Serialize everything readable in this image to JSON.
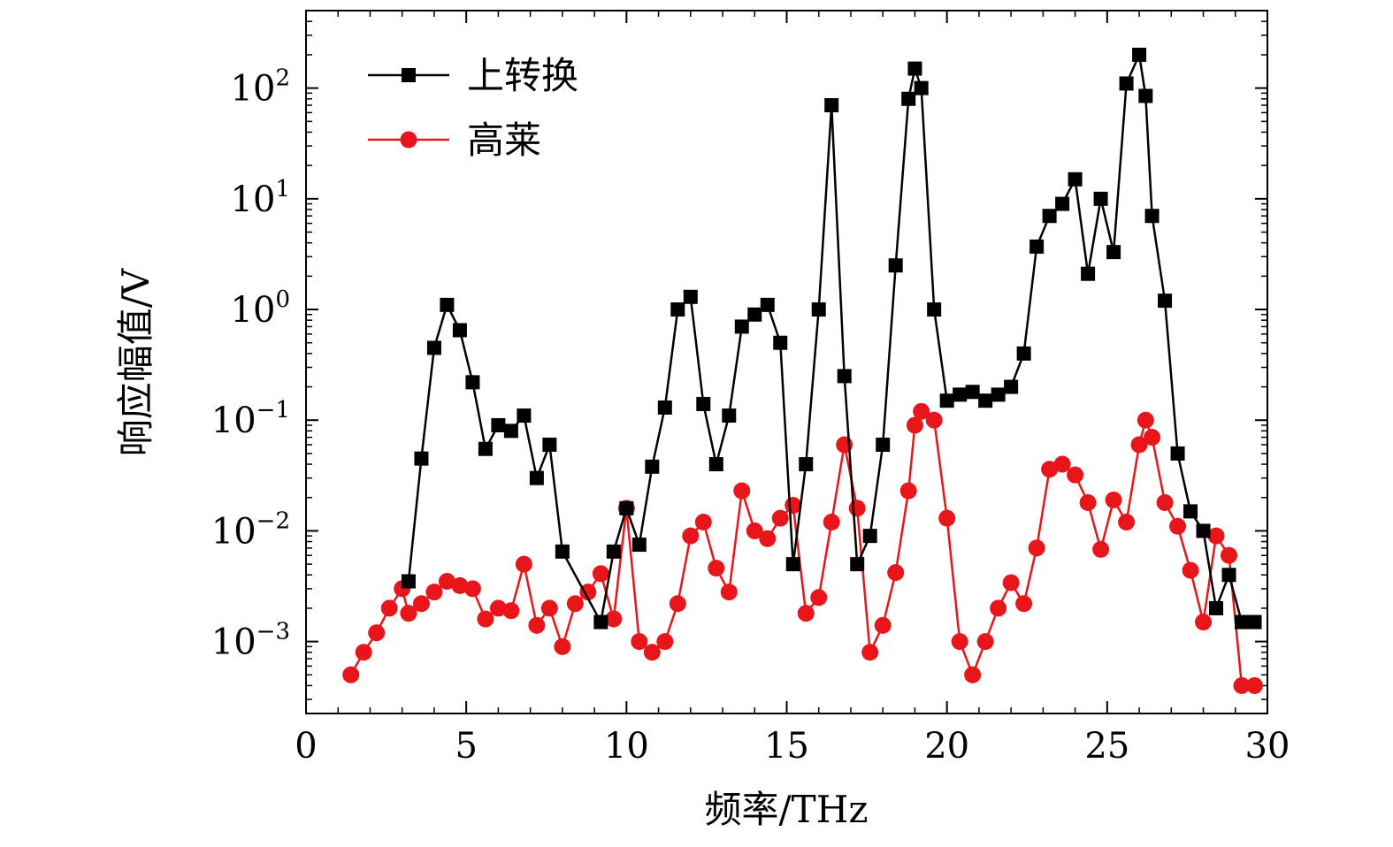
{
  "chart_data": {
    "type": "line",
    "title": "",
    "xlabel": "频率/THz",
    "ylabel": "响应幅值/V",
    "xlim": [
      0,
      30
    ],
    "ylim_log10": [
      -3.65,
      2.7
    ],
    "yscale": "log",
    "x_ticks": [
      "0",
      "5",
      "10",
      "15",
      "20",
      "25",
      "30"
    ],
    "y_ticks": [
      {
        "base": "10",
        "exp": "−3",
        "value": 0.001
      },
      {
        "base": "10",
        "exp": "−2",
        "value": 0.01
      },
      {
        "base": "10",
        "exp": "−1",
        "value": 0.1
      },
      {
        "base": "10",
        "exp": "0",
        "value": 1
      },
      {
        "base": "10",
        "exp": "1",
        "value": 10
      },
      {
        "base": "10",
        "exp": "2",
        "value": 100
      }
    ],
    "legend_position": "top-left",
    "series": [
      {
        "name": "上转换",
        "color": "#000000",
        "marker": "square",
        "x": [
          3.2,
          3.6,
          4.0,
          4.4,
          4.8,
          5.2,
          5.6,
          6.0,
          6.4,
          6.8,
          7.2,
          7.6,
          8.0,
          9.2,
          9.6,
          10.0,
          10.4,
          10.8,
          11.2,
          11.6,
          12.0,
          12.4,
          12.8,
          13.2,
          13.6,
          14.0,
          14.4,
          14.8,
          15.2,
          15.6,
          16.0,
          16.4,
          16.8,
          17.2,
          17.6,
          18.0,
          18.4,
          18.8,
          19.0,
          19.2,
          19.6,
          20.0,
          20.4,
          20.8,
          21.2,
          21.6,
          22.0,
          22.4,
          22.8,
          23.2,
          23.6,
          24.0,
          24.4,
          24.8,
          25.2,
          25.6,
          26.0,
          26.2,
          26.4,
          26.8,
          27.2,
          27.6,
          28.0,
          28.4,
          28.8,
          29.2,
          29.6
        ],
        "values": [
          0.0035,
          0.045,
          0.45,
          1.1,
          0.65,
          0.22,
          0.055,
          0.09,
          0.08,
          0.11,
          0.03,
          0.06,
          0.0065,
          0.0015,
          0.0065,
          0.016,
          0.0075,
          0.038,
          0.13,
          1.0,
          1.3,
          0.14,
          0.04,
          0.11,
          0.7,
          0.9,
          1.1,
          0.5,
          0.005,
          0.04,
          1.0,
          70,
          0.25,
          0.005,
          0.009,
          0.06,
          2.5,
          80,
          150,
          100,
          1.0,
          0.15,
          0.17,
          0.18,
          0.15,
          0.17,
          0.2,
          0.4,
          3.7,
          7.0,
          9.0,
          15,
          2.1,
          10,
          3.3,
          110,
          200,
          85,
          7.0,
          1.2,
          0.05,
          0.015,
          0.01,
          0.002,
          0.004,
          0.0015,
          0.0015
        ]
      },
      {
        "name": "高莱",
        "color": "#e8151b",
        "marker": "circle",
        "x": [
          1.4,
          1.8,
          2.2,
          2.6,
          3.0,
          3.2,
          3.6,
          4.0,
          4.4,
          4.8,
          5.2,
          5.6,
          6.0,
          6.4,
          6.8,
          7.2,
          7.6,
          8.0,
          8.4,
          8.8,
          9.2,
          9.6,
          10.0,
          10.4,
          10.8,
          11.2,
          11.6,
          12.0,
          12.4,
          12.8,
          13.2,
          13.6,
          14.0,
          14.4,
          14.8,
          15.2,
          15.6,
          16.0,
          16.4,
          16.8,
          17.2,
          17.6,
          18.0,
          18.4,
          18.8,
          19.0,
          19.2,
          19.6,
          20.0,
          20.4,
          20.8,
          21.2,
          21.6,
          22.0,
          22.4,
          22.8,
          23.2,
          23.6,
          24.0,
          24.4,
          24.8,
          25.2,
          25.6,
          26.0,
          26.2,
          26.4,
          26.8,
          27.2,
          27.6,
          28.0,
          28.4,
          28.8,
          29.2,
          29.6
        ],
        "values": [
          0.0005,
          0.0008,
          0.0012,
          0.002,
          0.003,
          0.0018,
          0.0022,
          0.0028,
          0.0035,
          0.0032,
          0.003,
          0.0016,
          0.002,
          0.0019,
          0.005,
          0.0014,
          0.002,
          0.0009,
          0.0022,
          0.0028,
          0.0041,
          0.0016,
          0.016,
          0.001,
          0.0008,
          0.001,
          0.0022,
          0.009,
          0.012,
          0.0046,
          0.0028,
          0.023,
          0.01,
          0.0085,
          0.013,
          0.017,
          0.0018,
          0.0025,
          0.012,
          0.06,
          0.016,
          0.0008,
          0.0014,
          0.0042,
          0.023,
          0.09,
          0.12,
          0.1,
          0.013,
          0.001,
          0.0005,
          0.001,
          0.002,
          0.0034,
          0.0022,
          0.007,
          0.036,
          0.04,
          0.032,
          0.018,
          0.0068,
          0.019,
          0.012,
          0.06,
          0.1,
          0.07,
          0.018,
          0.011,
          0.0044,
          0.0015,
          0.009,
          0.006,
          0.0004,
          0.0004
        ]
      }
    ]
  }
}
